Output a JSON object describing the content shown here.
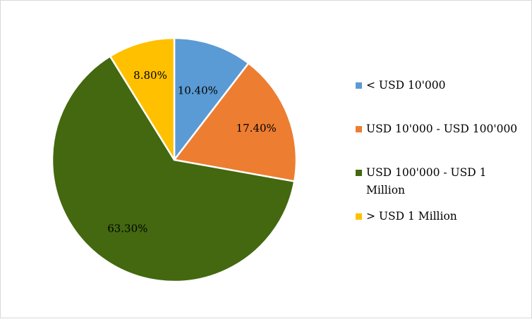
{
  "chart_data": {
    "type": "pie",
    "title": "",
    "series": [
      {
        "categories": [
          "< USD 10'000",
          "USD 10'000 - USD 100'000",
          "USD 100'000 - USD 1 Million",
          "> USD 1 Million"
        ],
        "values": [
          10.4,
          17.4,
          63.3,
          8.8
        ],
        "data_labels": [
          "10.40%",
          "17.40%",
          "63.30%",
          "8.80%"
        ],
        "colors": [
          "#5b9bd5",
          "#ed7d31",
          "#43680f",
          "#ffc000"
        ]
      }
    ],
    "legend": {
      "position": "right",
      "entries": [
        "< USD 10'000",
        "USD 10'000 - USD 100'000",
        "USD 100'000 - USD 1 Million",
        "> USD 1 Million"
      ]
    },
    "start_angle_deg": 0,
    "direction": "clockwise"
  }
}
